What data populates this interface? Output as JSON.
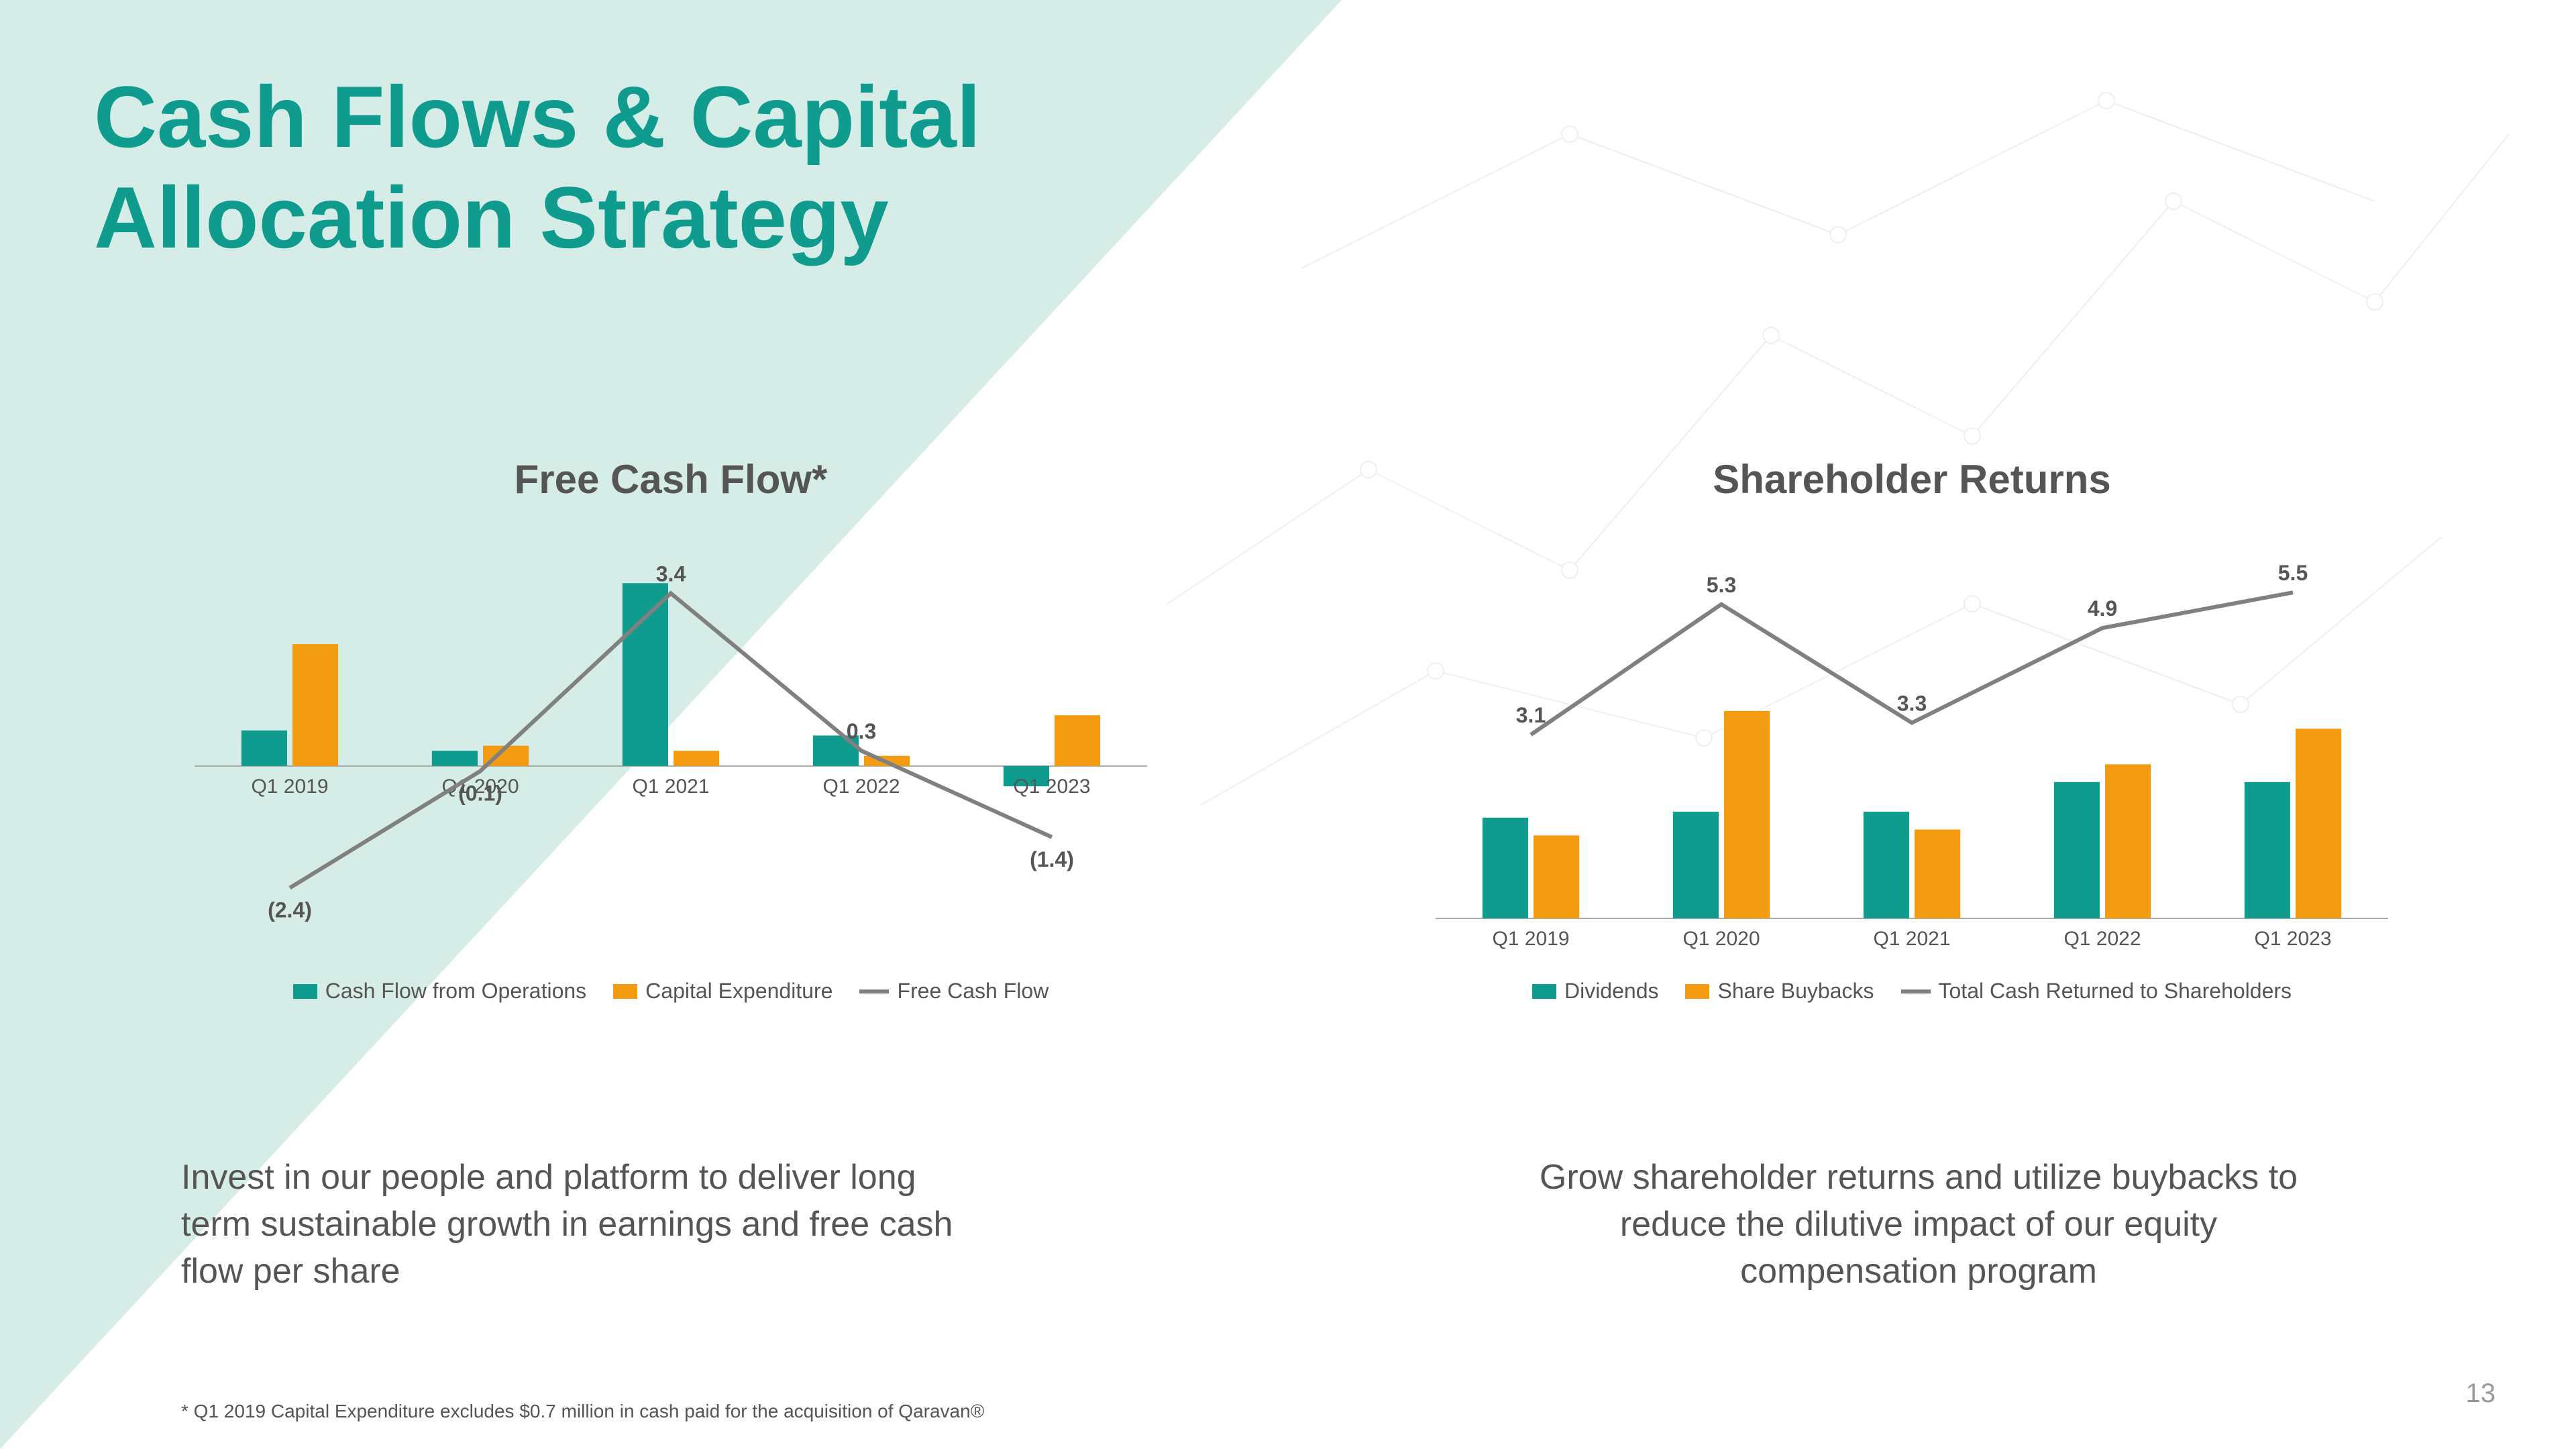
{
  "title": "Cash Flows & Capital Allocation Strategy",
  "page_number": "13",
  "colors": {
    "teal": "#0f9b8e",
    "orange": "#f39c12",
    "grey_line": "#808080",
    "grey_text": "#555555",
    "axis": "#aaaaaa",
    "bg_tri": "#d6ede7"
  },
  "footnote": "* Q1 2019 Capital Expenditure excludes $0.7 million in cash paid for the acquisition of Qaravan®",
  "fcf_chart": {
    "title": "Free Cash Flow*",
    "categories": [
      "Q1 2019",
      "Q1 2020",
      "Q1 2021",
      "Q1 2022",
      "Q1 2023"
    ],
    "cfo": [
      0.7,
      0.3,
      3.6,
      0.6,
      -0.4
    ],
    "capex": [
      2.4,
      0.4,
      0.3,
      0.2,
      1.0
    ],
    "fcf": [
      -2.4,
      -0.1,
      3.4,
      0.3,
      -1.4
    ],
    "show_line_labels": true,
    "y_max": 4.0,
    "y_min": -3.0,
    "bar_colors": {
      "cfo": "#0f9b8e",
      "capex": "#f39c12"
    },
    "line_color": "#808080",
    "line_width": 6,
    "bar_width": 0.24,
    "legend": [
      {
        "label": "Cash Flow from Operations",
        "kind": "bar",
        "color": "#0f9b8e"
      },
      {
        "label": "Capital Expenditure",
        "kind": "bar",
        "color": "#f39c12"
      },
      {
        "label": "Free Cash Flow",
        "kind": "line",
        "color": "#808080"
      }
    ]
  },
  "fcf_blurb": "Invest in our people and platform to deliver long term sustainable growth in earnings and free cash flow per share",
  "sr_chart": {
    "title": "Shareholder Returns",
    "categories": [
      "Q1 2019",
      "Q1 2020",
      "Q1 2021",
      "Q1 2022",
      "Q1 2023"
    ],
    "dividends": [
      1.7,
      1.8,
      1.8,
      2.3,
      2.3
    ],
    "buybacks": [
      1.4,
      3.5,
      1.5,
      2.6,
      3.2
    ],
    "total": [
      3.1,
      5.3,
      3.3,
      4.9,
      5.5
    ],
    "show_line_labels": true,
    "y_max": 6.0,
    "y_min": 0,
    "bar_colors": {
      "dividends": "#0f9b8e",
      "buybacks": "#f39c12"
    },
    "line_color": "#808080",
    "line_width": 6,
    "bar_width": 0.24,
    "legend": [
      {
        "label": "Dividends",
        "kind": "bar",
        "color": "#0f9b8e"
      },
      {
        "label": "Share Buybacks",
        "kind": "bar",
        "color": "#f39c12"
      },
      {
        "label": "Total Cash Returned to Shareholders",
        "kind": "line",
        "color": "#808080"
      }
    ]
  },
  "sr_blurb": "Grow shareholder returns and utilize buybacks to reduce the dilutive impact of our equity compensation program"
}
